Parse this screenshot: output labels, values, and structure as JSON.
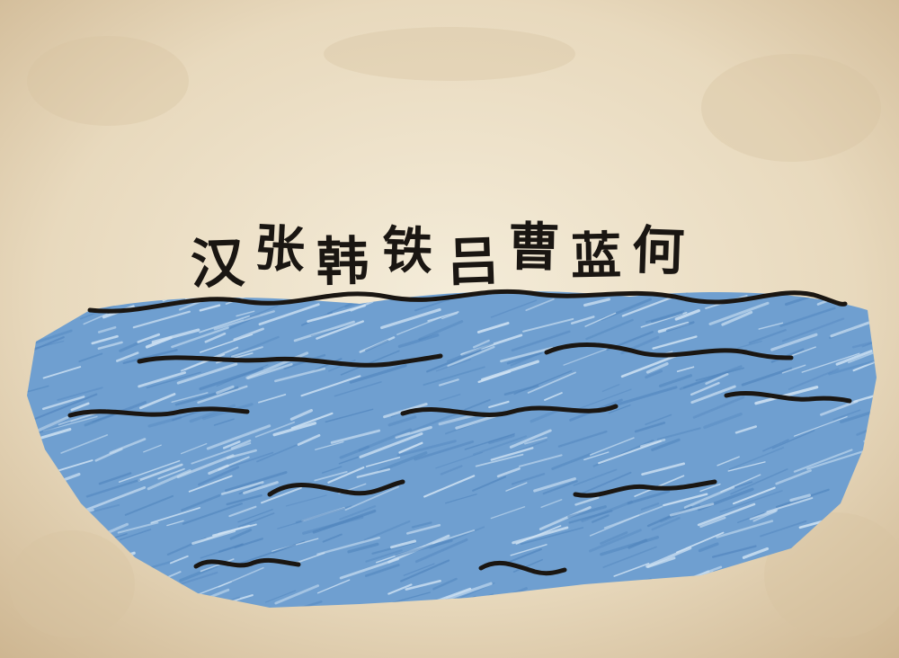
{
  "illustration": {
    "background_color": "#e9dcc4",
    "water_color": "#6f9fd0",
    "ink_color": "#1a1612"
  },
  "surnames": [
    "汉",
    "张",
    "韩",
    "铁",
    "吕",
    "曹",
    "蓝",
    "何"
  ]
}
